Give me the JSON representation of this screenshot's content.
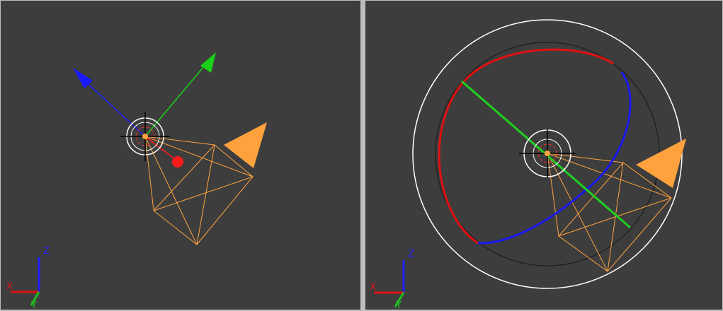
{
  "viewports": [
    {
      "axes": {
        "z": "Z",
        "x": "X",
        "y": "Y"
      }
    },
    {
      "axes": {
        "z": "Z",
        "x": "X",
        "y": "Y"
      }
    }
  ]
}
